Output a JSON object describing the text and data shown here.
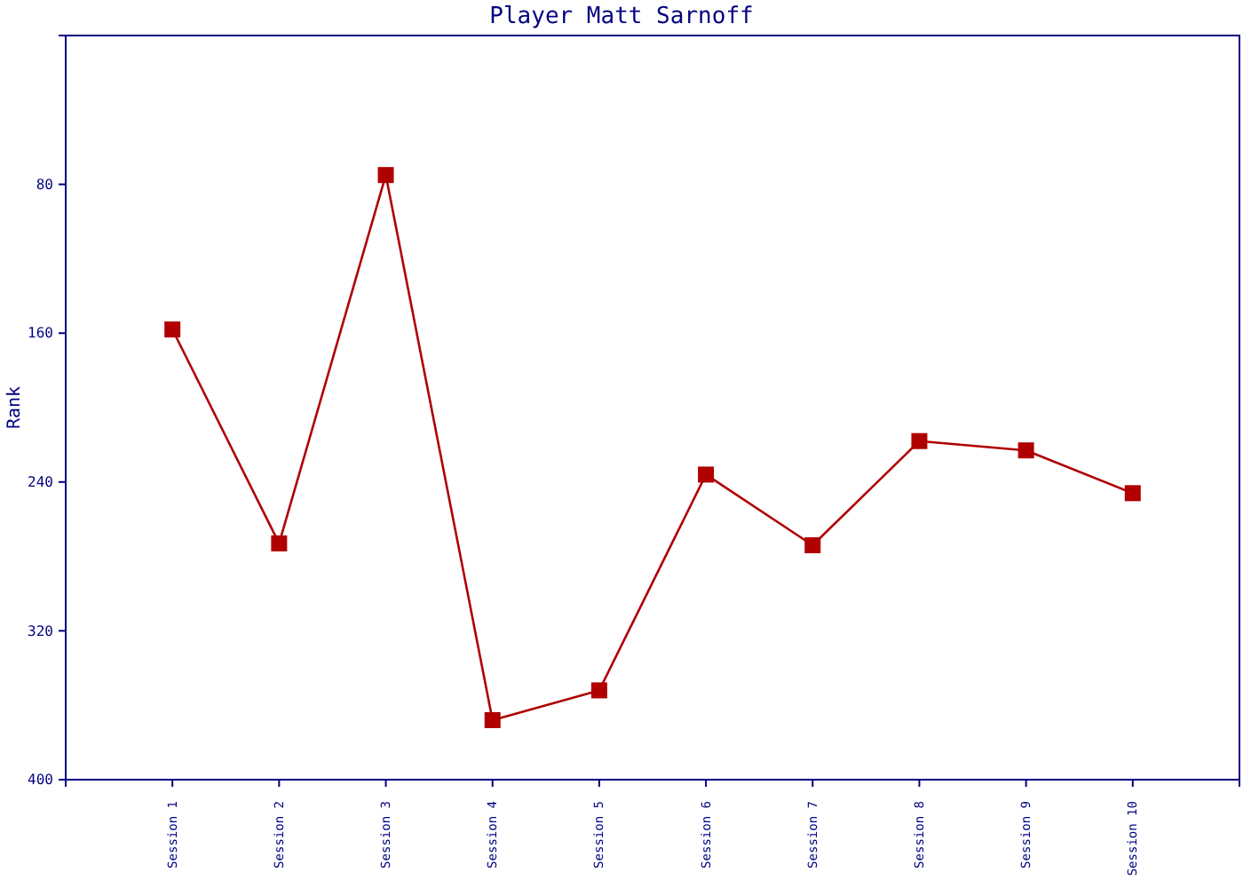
{
  "chart_data": {
    "type": "line",
    "title": "Player Matt Sarnoff",
    "ylabel": "Rank",
    "categories": [
      "Session 1",
      "Session 2",
      "Session 3",
      "Session 4",
      "Session 5",
      "Session 6",
      "Session 7",
      "Session 8",
      "Session 9",
      "Session 10"
    ],
    "series": [
      {
        "color": "#b00000",
        "values": [
          158,
          273,
          75,
          368,
          352,
          236,
          274,
          218,
          223,
          246
        ]
      }
    ],
    "ylim": [
      400,
      0
    ],
    "yticks": [
      80,
      160,
      240,
      320,
      400
    ],
    "grid": false,
    "marker": "square",
    "line_style": "solid"
  }
}
